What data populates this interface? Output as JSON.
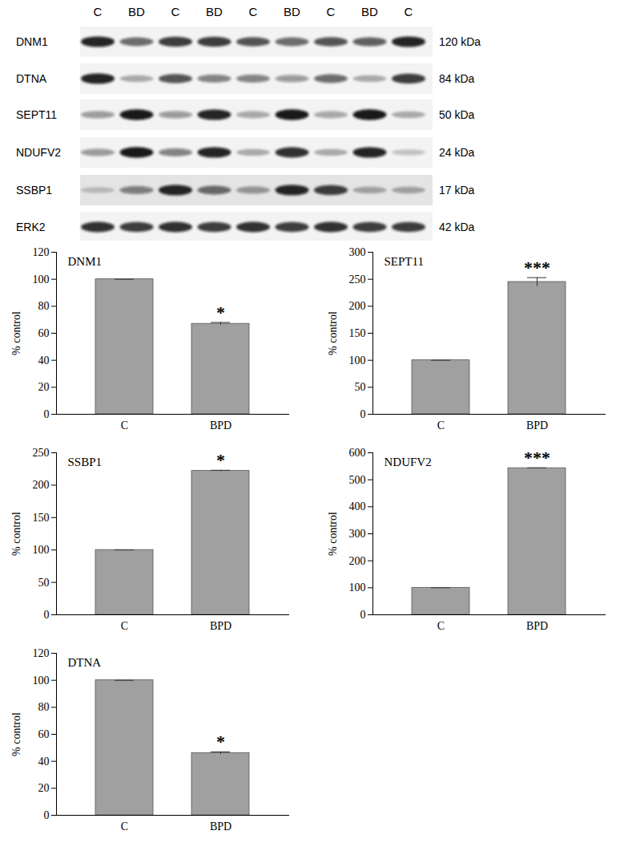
{
  "blot": {
    "lanes": [
      "C",
      "BD",
      "C",
      "BD",
      "C",
      "BD",
      "C",
      "BD",
      "C"
    ],
    "rows": [
      {
        "protein": "DNM1",
        "size": "120 kDa",
        "band_intensity": [
          0.9,
          0.6,
          0.8,
          0.8,
          0.7,
          0.6,
          0.7,
          0.65,
          0.9
        ]
      },
      {
        "protein": "DTNA",
        "size": "84 kDa",
        "band_intensity": [
          0.9,
          0.3,
          0.7,
          0.5,
          0.5,
          0.4,
          0.6,
          0.3,
          0.8
        ]
      },
      {
        "protein": "SEPT11",
        "size": "50 kDa",
        "band_intensity": [
          0.4,
          0.95,
          0.4,
          0.9,
          0.35,
          0.95,
          0.35,
          0.95,
          0.3
        ]
      },
      {
        "protein": "NDUFV2",
        "size": "24 kDa",
        "band_intensity": [
          0.4,
          0.95,
          0.5,
          0.9,
          0.3,
          0.85,
          0.3,
          0.9,
          0.2
        ]
      },
      {
        "protein": "SSBP1",
        "size": "17 kDa",
        "band_intensity": [
          0.2,
          0.5,
          0.9,
          0.6,
          0.4,
          0.9,
          0.8,
          0.3,
          0.3
        ]
      },
      {
        "protein": "ERK2",
        "size": "42 kDa",
        "band_intensity": [
          0.85,
          0.8,
          0.85,
          0.8,
          0.85,
          0.8,
          0.85,
          0.8,
          0.8
        ]
      }
    ]
  },
  "chart_data": [
    {
      "type": "bar",
      "title": "DNM1",
      "categories": [
        "C",
        "BPD"
      ],
      "values": [
        100,
        67
      ],
      "errors": [
        0,
        1
      ],
      "ylabel": "% control",
      "ylim": [
        0,
        120
      ],
      "yticks": [
        0,
        20,
        40,
        60,
        80,
        100,
        120
      ],
      "color": "#a0a0a0",
      "annotations": [
        {
          "category": "BPD",
          "text": "*"
        }
      ]
    },
    {
      "type": "bar",
      "title": "SEPT11",
      "categories": [
        "C",
        "BPD"
      ],
      "values": [
        100,
        245
      ],
      "errors": [
        0,
        8
      ],
      "ylabel": "% control",
      "ylim": [
        0,
        300
      ],
      "yticks": [
        0,
        50,
        100,
        150,
        200,
        250,
        300
      ],
      "color": "#a0a0a0",
      "annotations": [
        {
          "category": "BPD",
          "text": "***"
        }
      ]
    },
    {
      "type": "bar",
      "title": "SSBP1",
      "categories": [
        "C",
        "BPD"
      ],
      "values": [
        100,
        222
      ],
      "errors": [
        0,
        1
      ],
      "ylabel": "% control",
      "ylim": [
        0,
        250
      ],
      "yticks": [
        0,
        50,
        100,
        150,
        200,
        250
      ],
      "color": "#a0a0a0",
      "annotations": [
        {
          "category": "BPD",
          "text": "*"
        }
      ]
    },
    {
      "type": "bar",
      "title": "NDUFV2",
      "categories": [
        "C",
        "BPD"
      ],
      "values": [
        100,
        543
      ],
      "errors": [
        0,
        1
      ],
      "ylabel": "% control",
      "ylim": [
        0,
        600
      ],
      "yticks": [
        0,
        100,
        200,
        300,
        400,
        500,
        600
      ],
      "color": "#a0a0a0",
      "annotations": [
        {
          "category": "BPD",
          "text": "***"
        }
      ]
    },
    {
      "type": "bar",
      "title": "DTNA",
      "categories": [
        "C",
        "BPD"
      ],
      "values": [
        100,
        46
      ],
      "errors": [
        0,
        1
      ],
      "ylabel": "% control",
      "ylim": [
        0,
        120
      ],
      "yticks": [
        0,
        20,
        40,
        60,
        80,
        100,
        120
      ],
      "color": "#a0a0a0",
      "annotations": [
        {
          "category": "BPD",
          "text": "*"
        }
      ]
    }
  ]
}
